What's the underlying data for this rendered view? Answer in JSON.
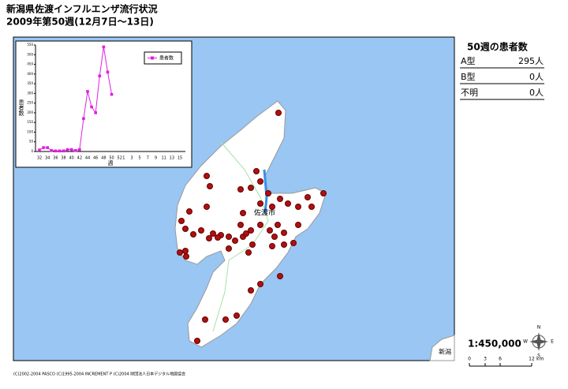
{
  "title": {
    "line1": "新潟県佐渡インフルエンザ流行状況",
    "line2": "2009年第50週(12月7日～13日)"
  },
  "chart_data": {
    "type": "line",
    "y_label": "患者数",
    "x_label": "週",
    "categories": [
      "32",
      null,
      "34",
      null,
      "36",
      null,
      "38",
      null,
      "40",
      null,
      "42",
      null,
      "44",
      null,
      "46",
      null,
      "48",
      null,
      "50",
      null,
      "52",
      "1",
      null,
      "3",
      null,
      "5",
      null,
      "7",
      null,
      "9",
      null,
      "11",
      null,
      "13",
      null,
      "15"
    ],
    "series": [
      {
        "name": "患者数",
        "color": "#e020e0",
        "values": [
          8,
          20,
          20,
          5,
          3,
          3,
          3,
          10,
          10,
          5,
          10,
          170,
          310,
          230,
          200,
          390,
          540,
          410,
          295,
          null,
          null,
          null,
          null,
          null,
          null,
          null,
          null,
          null,
          null,
          null,
          null,
          null,
          null,
          null,
          null,
          null
        ]
      }
    ],
    "ylim": [
      0,
      550
    ],
    "yticks": [
      0,
      50,
      100,
      150,
      200,
      250,
      300,
      350,
      400,
      450,
      500,
      550
    ]
  },
  "map": {
    "city": "佐渡市",
    "mainland": "新潟"
  },
  "panel": {
    "heading": "50週の患者数",
    "rows": [
      [
        "A型",
        "295人"
      ],
      [
        "B型",
        "0人"
      ],
      [
        "不明",
        "0人"
      ]
    ]
  },
  "scale": {
    "ratio": "1:450,000",
    "ticks": [
      "0",
      "3",
      "6",
      "12"
    ],
    "unit": "km"
  },
  "compass": {
    "n": "N",
    "e": "E",
    "s": "S",
    "w": "W"
  },
  "footer": "(C)2002-2004 PASCO (C)1995-2004 INCREMENT P (C)2004 財団法人日本デジタル地図協会"
}
